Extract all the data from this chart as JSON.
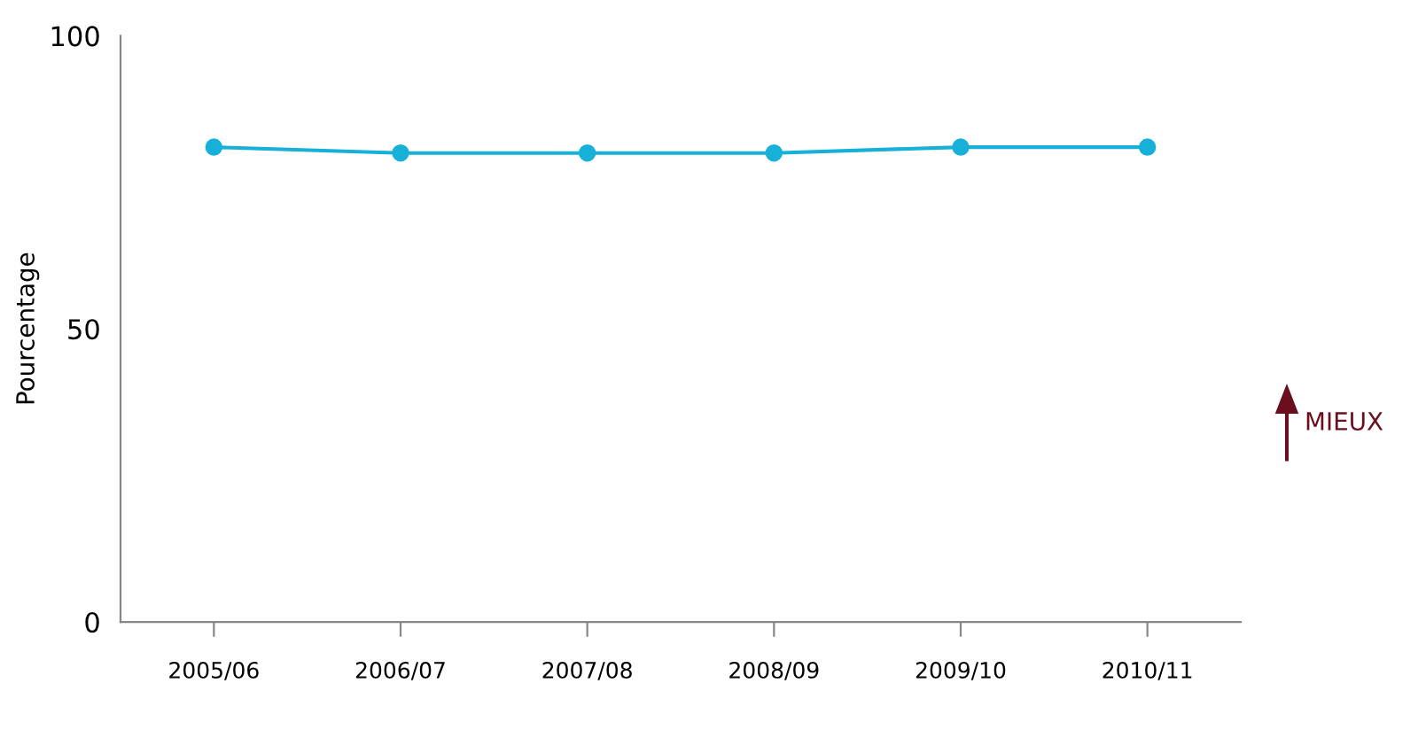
{
  "chart_data": {
    "type": "line",
    "ylabel": "Pourcentage",
    "categories": [
      "2005/06",
      "2006/07",
      "2007/08",
      "2008/09",
      "2009/10",
      "2010/11"
    ],
    "series": [
      {
        "color": "#17b0d9",
        "values": [
          81,
          80,
          80,
          80,
          81,
          81
        ]
      }
    ],
    "ylim": [
      0,
      100
    ],
    "yticks": [
      0,
      50,
      100
    ],
    "grid": false,
    "marker": "circle",
    "line_style": "solid",
    "annotations": [
      "MIEUX"
    ]
  }
}
